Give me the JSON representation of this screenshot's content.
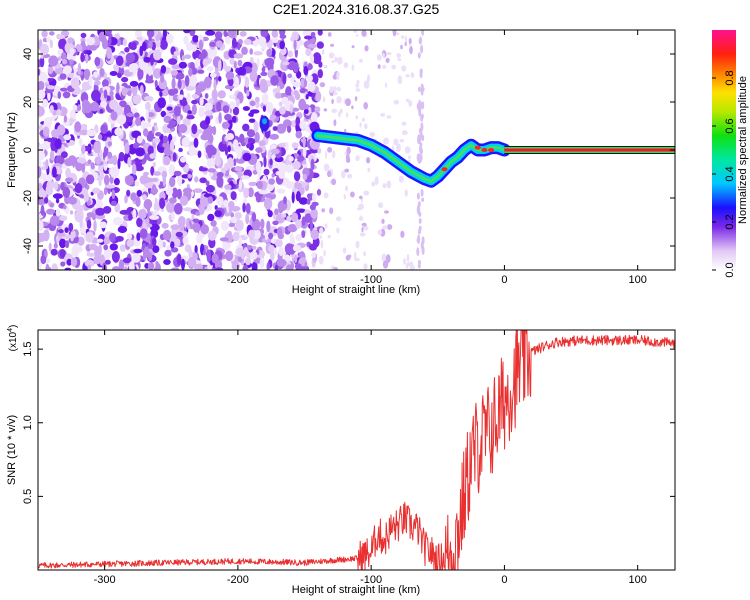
{
  "title": "C2E1.2024.316.08.37.G25",
  "chart_data": [
    {
      "type": "heatmap",
      "xlabel": "Height of straight line (km)",
      "ylabel": "Frequency (Hz)",
      "xlim": [
        -350,
        128
      ],
      "ylim": [
        -50,
        50
      ],
      "x_ticks": [
        -300,
        -200,
        -100,
        0,
        100
      ],
      "x_tick_labels": [
        "-300",
        "-200",
        "-100",
        "0",
        "100"
      ],
      "y_ticks": [
        -40,
        -20,
        0,
        20,
        40
      ],
      "y_tick_labels": [
        "-40",
        "-20",
        "0",
        "20",
        "40"
      ],
      "colorbar": {
        "label": "Normalized spectral amplitude",
        "range": [
          0,
          1
        ],
        "ticks": [
          0.0,
          0.2,
          0.4,
          0.6,
          0.8
        ],
        "tick_labels": [
          "0.0",
          "0.2",
          "0.4",
          "0.6",
          "0.8"
        ]
      },
      "ridge": {
        "x": [
          -140,
          -125,
          -110,
          -100,
          -90,
          -80,
          -70,
          -60,
          -55,
          -50,
          -45,
          -40,
          -35,
          -30,
          -25,
          -20,
          -15,
          -10,
          -5,
          0,
          128
        ],
        "y": [
          6,
          5,
          4,
          2,
          -1,
          -5,
          -9,
          -12,
          -13,
          -11,
          -8,
          -5,
          -3,
          0,
          2,
          0,
          0,
          1,
          1,
          0,
          0
        ]
      }
    },
    {
      "type": "line",
      "xlabel": "Height of straight line (km)",
      "ylabel": "SNR (10 * v/v)",
      "multiplier_label": "(x10",
      "multiplier_exp": "4",
      "multiplier_close": ")",
      "xlim": [
        -350,
        128
      ],
      "ylim": [
        0,
        1.63
      ],
      "x_ticks": [
        -300,
        -200,
        -100,
        0,
        100
      ],
      "x_tick_labels": [
        "-300",
        "-200",
        "-100",
        "0",
        "100"
      ],
      "y_ticks": [
        0.5,
        1.0,
        1.5
      ],
      "y_tick_labels": [
        "0.5",
        "1.0",
        "1.5"
      ],
      "color": "#e83030",
      "series": [
        {
          "x": [
            -350,
            -300,
            -250,
            -200,
            -150,
            -110,
            -100,
            -95,
            -90,
            -85,
            -80,
            -75,
            -70,
            -65,
            -60,
            -55,
            -50,
            -45,
            -40,
            -35,
            -30,
            -25,
            -20,
            -15,
            -10,
            -5,
            0,
            10,
            20,
            30,
            40,
            60,
            80,
            100,
            128
          ],
          "y": [
            0.03,
            0.04,
            0.05,
            0.06,
            0.05,
            0.08,
            0.12,
            0.25,
            0.2,
            0.28,
            0.3,
            0.35,
            0.3,
            0.28,
            0.15,
            0.12,
            0.06,
            0.08,
            0.1,
            0.25,
            0.5,
            0.75,
            0.85,
            0.9,
            0.95,
            1.05,
            1.15,
            1.35,
            1.48,
            1.52,
            1.55,
            1.56,
            1.56,
            1.56,
            1.54
          ]
        }
      ]
    }
  ]
}
